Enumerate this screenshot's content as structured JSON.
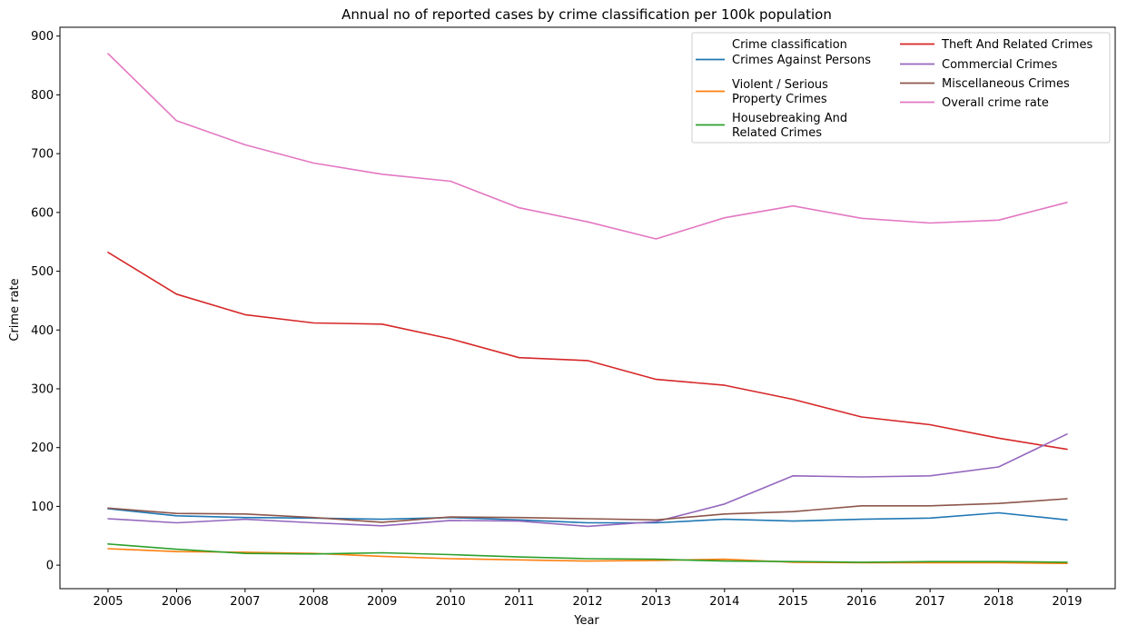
{
  "chart_data": {
    "type": "line",
    "title": "Annual no of reported cases by crime classification per 100k population",
    "xlabel": "Year",
    "ylabel": "Crime rate",
    "x": [
      "2005",
      "2006",
      "2007",
      "2008",
      "2009",
      "2010",
      "2011",
      "2012",
      "2013",
      "2014",
      "2015",
      "2016",
      "2017",
      "2018",
      "2019"
    ],
    "y_ticks": [
      0,
      100,
      200,
      300,
      400,
      500,
      600,
      700,
      800,
      900
    ],
    "ylim": [
      -40,
      915
    ],
    "grid": false,
    "legend": {
      "title": "Crime classification",
      "placement": "top-right",
      "columns": 2
    },
    "series": [
      {
        "name": "Crimes Against Persons",
        "color": "#1f77b4",
        "values": [
          96,
          84,
          81,
          80,
          78,
          81,
          77,
          72,
          72,
          78,
          75,
          78,
          80,
          89,
          77
        ]
      },
      {
        "name": "Violent / Serious Property Crimes",
        "color": "#ff7f0e",
        "values": [
          28,
          23,
          22,
          20,
          15,
          11,
          9,
          7,
          8,
          10,
          5,
          4,
          4,
          4,
          3
        ]
      },
      {
        "name": "Housebreaking And Related Crimes",
        "color": "#2ca02c",
        "values": [
          36,
          27,
          20,
          19,
          21,
          18,
          14,
          11,
          10,
          7,
          6,
          5,
          6,
          6,
          5
        ]
      },
      {
        "name": "Theft And Related Crimes",
        "color": "#d62728",
        "values": [
          532,
          461,
          426,
          412,
          410,
          385,
          353,
          348,
          316,
          306,
          282,
          252,
          239,
          216,
          197
        ]
      },
      {
        "name": "Commercial Crimes",
        "color": "#9467bd",
        "values": [
          79,
          72,
          78,
          72,
          67,
          76,
          75,
          66,
          74,
          104,
          152,
          150,
          152,
          167,
          223
        ]
      },
      {
        "name": "Miscellaneous Crimes",
        "color": "#8c564b",
        "values": [
          97,
          88,
          87,
          81,
          73,
          82,
          81,
          79,
          77,
          87,
          91,
          101,
          101,
          105,
          113
        ]
      },
      {
        "name": "Overall crime rate",
        "color": "#e377c2",
        "values": [
          870,
          756,
          715,
          684,
          665,
          653,
          608,
          584,
          555,
          591,
          611,
          590,
          582,
          587,
          617
        ]
      }
    ]
  }
}
